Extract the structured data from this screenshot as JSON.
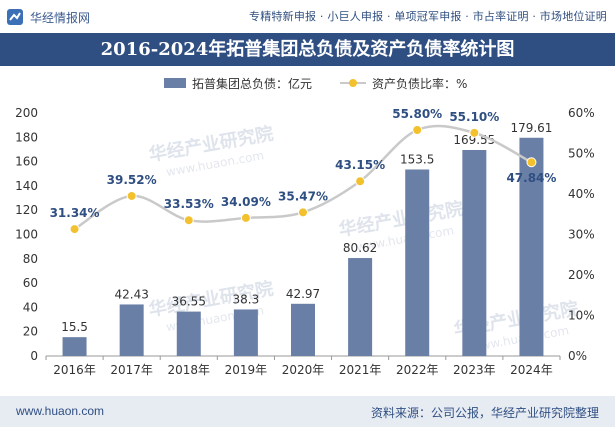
{
  "header": {
    "brand": "华经情报网",
    "tags": "专精特新申报 · 小巨人申报 · 单项冠军申报 · 市占率证明 · 市场地位证明"
  },
  "title": "2016-2024年拓普集团总负债及资产负债率统计图",
  "watermarks": [
    "华经产业研究院",
    "www.huaon.com"
  ],
  "footer": {
    "left": "www.huaon.com",
    "right": "资料来源：公司公报，华经产业研究院整理"
  },
  "colors": {
    "bar": "#6a7fa6",
    "line": "#c9c9c9",
    "marker": "#f3c12d",
    "title_bg": "#2f4f82"
  },
  "chart_data": {
    "type": "bar",
    "categories": [
      "2016年",
      "2017年",
      "2018年",
      "2019年",
      "2020年",
      "2021年",
      "2022年",
      "2023年",
      "2024年"
    ],
    "series": [
      {
        "name": "拓普集团总负债：亿元",
        "type": "bar",
        "axis": "left",
        "values": [
          15.5,
          42.43,
          36.55,
          38.3,
          42.97,
          80.62,
          153.5,
          169.55,
          179.61
        ],
        "labels": [
          "15.5",
          "42.43",
          "36.55",
          "38.3",
          "42.97",
          "80.62",
          "153.5",
          "169.55",
          "179.61"
        ]
      },
      {
        "name": "资产负债比率：%",
        "type": "line",
        "axis": "right",
        "values": [
          31.34,
          39.52,
          33.53,
          34.09,
          35.47,
          43.15,
          55.8,
          55.1,
          47.84
        ],
        "labels": [
          "31.34%",
          "39.52%",
          "33.53%",
          "34.09%",
          "35.47%",
          "43.15%",
          "55.80%",
          "55.10%",
          "47.84%"
        ]
      }
    ],
    "y_left": {
      "min": 0,
      "max": 200,
      "ticks": [
        "0",
        "20",
        "40",
        "60",
        "80",
        "100",
        "120",
        "140",
        "160",
        "180",
        "200"
      ]
    },
    "y_right": {
      "min": 0,
      "max": 60,
      "ticks": [
        "0%",
        "10%",
        "20%",
        "30%",
        "40%",
        "50%",
        "60%"
      ]
    },
    "legend_position": "top-center",
    "grid": false
  }
}
